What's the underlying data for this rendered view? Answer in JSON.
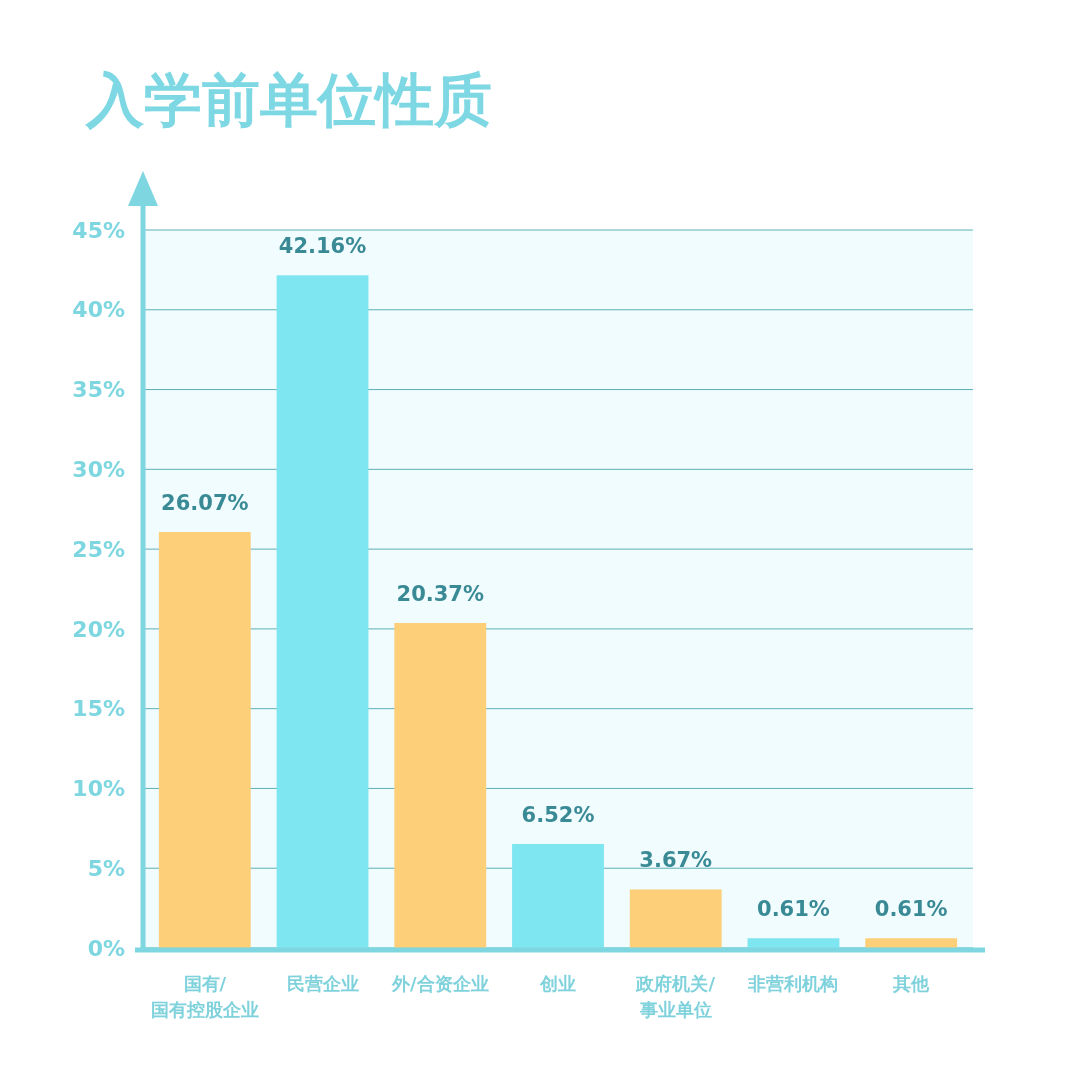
{
  "chart_data": {
    "type": "bar",
    "title": "入学前单位性质",
    "categories": [
      "国有/\n国有控股企业",
      "民营企业",
      "外/合资企业",
      "创业",
      "政府机关/\n事业单位",
      "非营利机构",
      "其他"
    ],
    "values": [
      26.07,
      42.16,
      20.37,
      6.52,
      3.67,
      0.61,
      0.61
    ],
    "colors": [
      "#fccf78",
      "#7ee6f0",
      "#fccf78",
      "#7ee6f0",
      "#fccf78",
      "#7ee6f0",
      "#fccf78"
    ],
    "value_labels": [
      "26.07%",
      "42.16%",
      "20.37%",
      "6.52%",
      "3.67%",
      "0.61%",
      "0.61%"
    ],
    "ylim": [
      0,
      45
    ],
    "yticks": [
      {
        "value": 0,
        "label": "0%"
      },
      {
        "value": 5,
        "label": "5%"
      },
      {
        "value": 10,
        "label": "10%"
      },
      {
        "value": 15,
        "label": "15%"
      },
      {
        "value": 20,
        "label": "20%"
      },
      {
        "value": 25,
        "label": "25%"
      },
      {
        "value": 30,
        "label": "30%"
      },
      {
        "value": 35,
        "label": "35%"
      },
      {
        "value": 40,
        "label": "40%"
      },
      {
        "value": 45,
        "label": "45%"
      }
    ],
    "grid": "y"
  }
}
